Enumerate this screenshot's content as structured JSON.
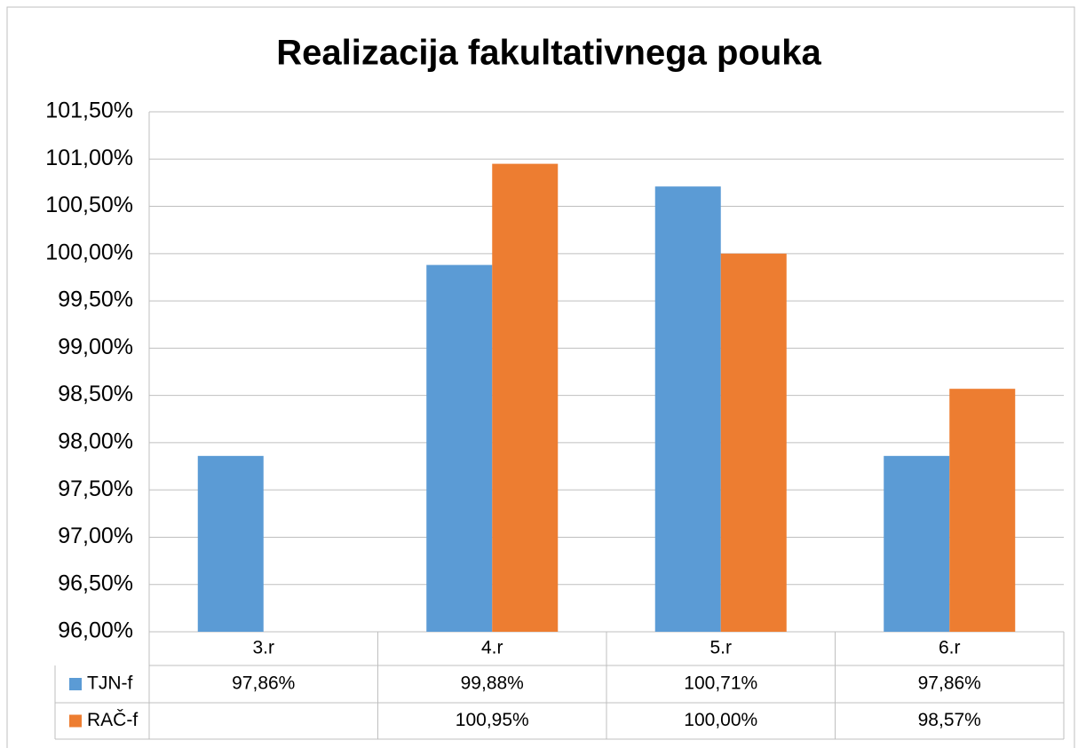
{
  "chart_data": {
    "type": "bar",
    "title": "Realizacija fakultativnega pouka",
    "categories": [
      "3.r",
      "4.r",
      "5.r",
      "6.r"
    ],
    "series": [
      {
        "name": "TJN-f",
        "color": "#5b9bd5",
        "values": [
          97.86,
          99.88,
          100.71,
          97.86
        ],
        "value_labels": [
          "97,86%",
          "99,88%",
          "100,71%",
          "97,86%"
        ]
      },
      {
        "name": "RAČ-f",
        "color": "#ed7d31",
        "values": [
          null,
          100.95,
          100.0,
          98.57
        ],
        "value_labels": [
          null,
          "100,95%",
          "100,00%",
          "98,57%"
        ]
      }
    ],
    "ylim": [
      96,
      101.5
    ],
    "yticks": [
      {
        "value": 96,
        "label": "96,00%"
      },
      {
        "value": 96.5,
        "label": "96,50%"
      },
      {
        "value": 97,
        "label": "97,00%"
      },
      {
        "value": 97.5,
        "label": "97,50%"
      },
      {
        "value": 98,
        "label": "98,00%"
      },
      {
        "value": 98.5,
        "label": "98,50%"
      },
      {
        "value": 99,
        "label": "99,00%"
      },
      {
        "value": 99.5,
        "label": "99,50%"
      },
      {
        "value": 100,
        "label": "100,00%"
      },
      {
        "value": 100.5,
        "label": "100,50%"
      },
      {
        "value": 101,
        "label": "101,00%"
      },
      {
        "value": 101.5,
        "label": "101,50%"
      }
    ],
    "grid": true
  }
}
